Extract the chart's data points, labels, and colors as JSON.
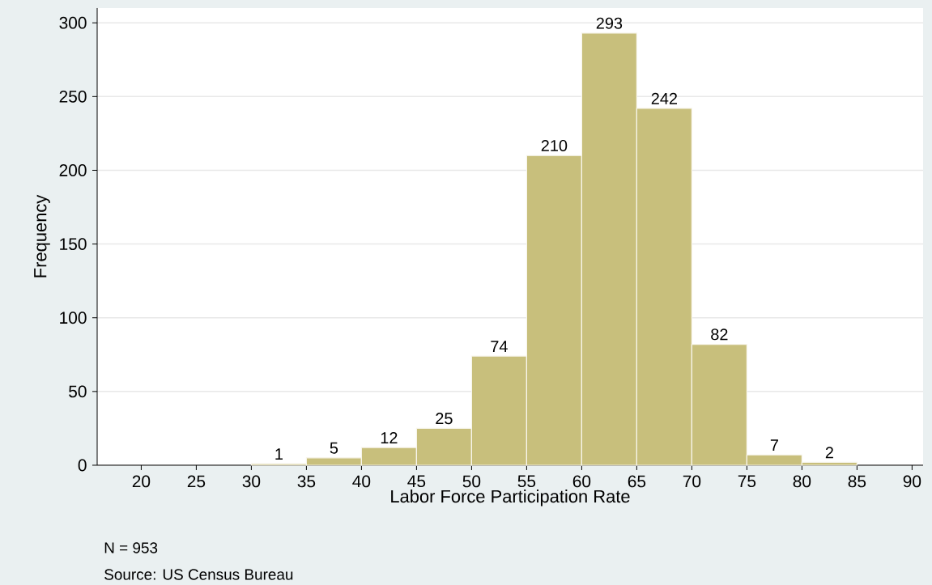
{
  "chart_data": {
    "type": "histogram",
    "xlabel": "Labor Force Participation Rate",
    "ylabel": "Frequency",
    "bins": [
      30,
      35,
      40,
      45,
      50,
      55,
      60,
      65,
      70,
      75,
      80,
      85
    ],
    "values": [
      1,
      5,
      12,
      25,
      74,
      210,
      293,
      242,
      82,
      7,
      2
    ],
    "color": "#c8bf7c",
    "data_labels": true,
    "xlim": [
      16,
      91
    ],
    "ylim": [
      0,
      310
    ],
    "xticks": [
      20,
      25,
      30,
      35,
      40,
      45,
      50,
      55,
      60,
      65,
      70,
      75,
      80,
      85,
      90
    ],
    "yticks": [
      0,
      50,
      100,
      150,
      200,
      250,
      300
    ],
    "grid": "y",
    "annotations": [
      "N = 953",
      "Source: US Census Bureau"
    ]
  }
}
